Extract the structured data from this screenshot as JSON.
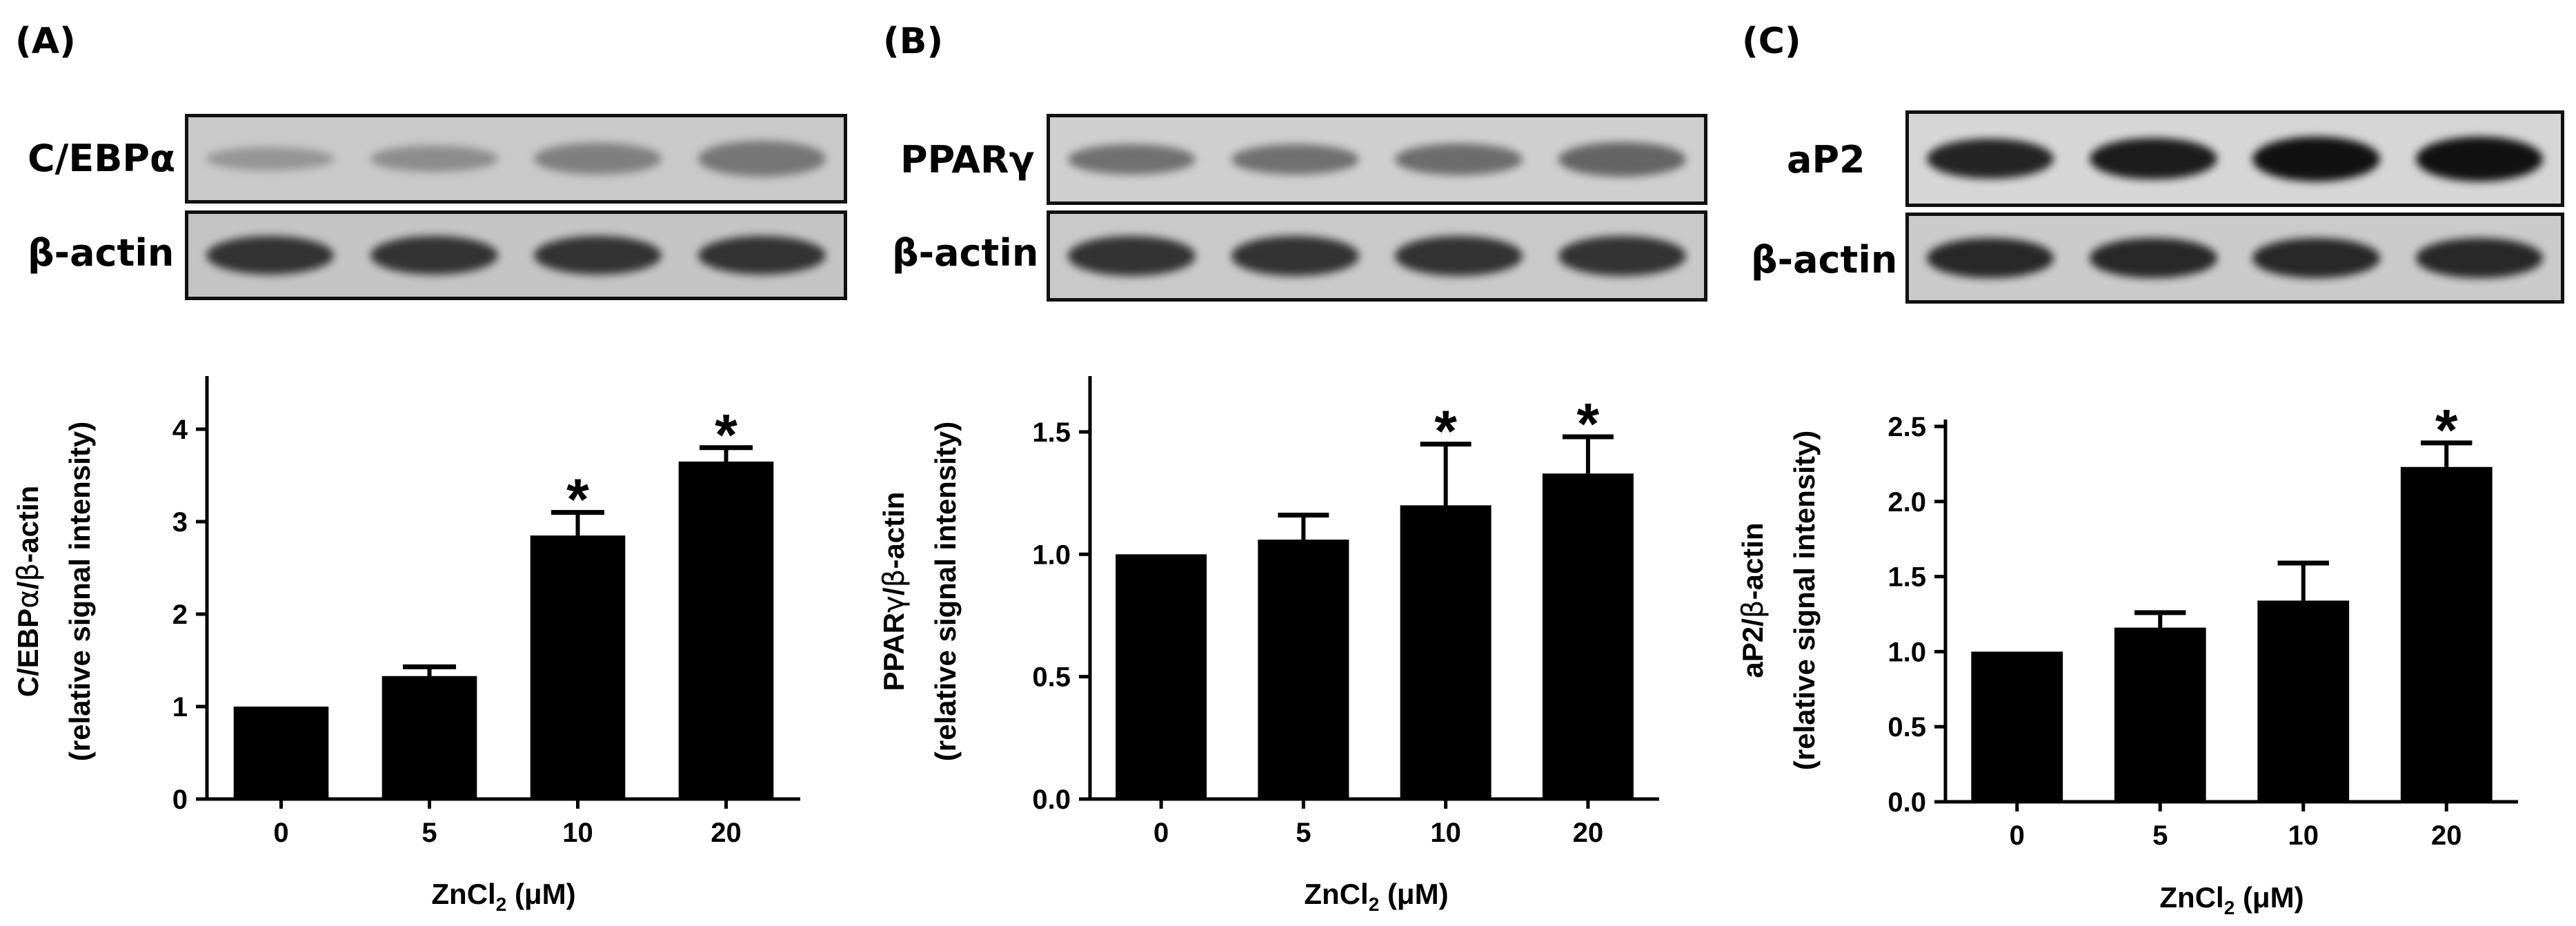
{
  "figure": {
    "panels": [
      {
        "label": "(A)",
        "blots": [
          {
            "name": "c-ebpa",
            "label": "C/EBPα",
            "band_color": "#6a6a6a",
            "intensity": [
              0.3,
              0.45,
              0.65,
              0.8
            ]
          },
          {
            "name": "beta-actin",
            "label": "β-actin",
            "band_color": "#2a2a2a",
            "intensity": [
              0.9,
              0.9,
              0.9,
              0.9
            ]
          }
        ]
      },
      {
        "label": "(B)",
        "blots": [
          {
            "name": "ppar-gamma",
            "label": "PPARγ",
            "band_color": "#4a4a4a",
            "intensity": [
              0.55,
              0.55,
              0.6,
              0.7
            ]
          },
          {
            "name": "beta-actin",
            "label": "β-actin",
            "band_color": "#2a2a2a",
            "intensity": [
              0.9,
              0.9,
              0.9,
              0.9
            ]
          }
        ]
      },
      {
        "label": "(C)",
        "blots": [
          {
            "name": "ap2",
            "label": "aP2",
            "band_color": "#111111",
            "intensity": [
              0.85,
              0.9,
              1.0,
              1.0
            ]
          },
          {
            "name": "beta-actin",
            "label": "β-actin",
            "band_color": "#1e1e1e",
            "intensity": [
              0.9,
              0.9,
              0.9,
              0.9
            ]
          }
        ]
      }
    ]
  },
  "chart_data": [
    {
      "type": "bar",
      "panel": "(A)",
      "categories": [
        "0",
        "5",
        "10",
        "20"
      ],
      "values": [
        1.0,
        1.33,
        2.85,
        3.65
      ],
      "errors": [
        0,
        0.1,
        0.25,
        0.15
      ],
      "significant": [
        false,
        false,
        true,
        true
      ],
      "sig_marker": "*",
      "ylim": [
        0,
        4.5
      ],
      "yticks": [
        "0",
        "1",
        "2",
        "3",
        "4"
      ],
      "ylabel_line1_prefix": "C/EBP",
      "ylabel_line1_symbol": "α",
      "ylabel_line1_mid": "/",
      "ylabel_line1_symbol2": "β",
      "ylabel_line1_suffix": "-actin",
      "ylabel_line2": "(relative signal intensity)",
      "xlabel_prefix": "ZnCl",
      "xlabel_sub": "2",
      "xlabel_suffix": " (μM)"
    },
    {
      "type": "bar",
      "panel": "(B)",
      "categories": [
        "0",
        "5",
        "10",
        "20"
      ],
      "values": [
        1.0,
        1.06,
        1.2,
        1.33
      ],
      "errors": [
        0,
        0.1,
        0.25,
        0.15
      ],
      "significant": [
        false,
        false,
        true,
        true
      ],
      "sig_marker": "*",
      "ylim": [
        0,
        1.7
      ],
      "yticks": [
        "0.0",
        "0.5",
        "1.0",
        "1.5"
      ],
      "ylabel_line1_prefix": "PPAR",
      "ylabel_line1_symbol": "γ",
      "ylabel_line1_mid": "/",
      "ylabel_line1_symbol2": "β",
      "ylabel_line1_suffix": "-actin",
      "ylabel_line2": "(relative signal intensity)",
      "xlabel_prefix": "ZnCl",
      "xlabel_sub": "2",
      "xlabel_suffix": " (μM)"
    },
    {
      "type": "bar",
      "panel": "(C)",
      "categories": [
        "0",
        "5",
        "10",
        "20"
      ],
      "values": [
        1.0,
        1.16,
        1.34,
        2.23
      ],
      "errors": [
        0,
        0.1,
        0.25,
        0.16
      ],
      "significant": [
        false,
        false,
        false,
        true
      ],
      "sig_marker": "*",
      "ylim": [
        0,
        2.5
      ],
      "yticks": [
        "0.0",
        "0.5",
        "1.0",
        "1.5",
        "2.0",
        "2.5"
      ],
      "ylabel_line1_prefix": "aP2/",
      "ylabel_line1_symbol": "",
      "ylabel_line1_mid": "",
      "ylabel_line1_symbol2": "β",
      "ylabel_line1_suffix": "-actin",
      "ylabel_line2": "(relative signal intensity)",
      "xlabel_prefix": "ZnCl",
      "xlabel_sub": "2",
      "xlabel_suffix": " (μM)"
    }
  ]
}
